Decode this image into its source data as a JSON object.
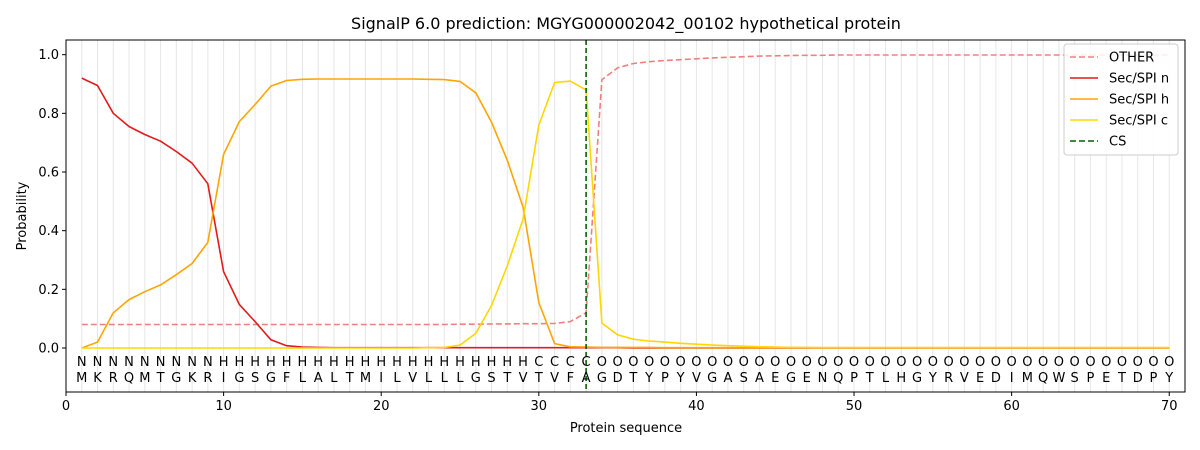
{
  "chart_data": {
    "type": "line",
    "title": "SignalP 6.0 prediction: MGYG000002042_00102 hypothetical protein",
    "xlabel": "Protein sequence",
    "ylabel": "Probability",
    "xlim": [
      0,
      71
    ],
    "ylim": [
      -0.15,
      1.05
    ],
    "x_ticks": [
      0,
      10,
      20,
      30,
      40,
      50,
      60,
      70
    ],
    "y_ticks": [
      0.0,
      0.2,
      0.4,
      0.6,
      0.8,
      1.0
    ],
    "x_tick_labels": [
      "0",
      "10",
      "20",
      "30",
      "40",
      "50",
      "60",
      "70"
    ],
    "y_tick_labels": [
      "0.0",
      "0.2",
      "0.4",
      "0.6",
      "0.8",
      "1.0"
    ],
    "grid": "vertical lines at each residue",
    "legend_position": "top-right",
    "sequence": [
      "M",
      "K",
      "R",
      "Q",
      "M",
      "T",
      "G",
      "K",
      "R",
      "I",
      "G",
      "S",
      "G",
      "F",
      "L",
      "A",
      "L",
      "T",
      "M",
      "I",
      "L",
      "V",
      "L",
      "L",
      "L",
      "G",
      "S",
      "T",
      "V",
      "T",
      "V",
      "F",
      "A",
      "G",
      "D",
      "T",
      "Y",
      "P",
      "Y",
      "V",
      "G",
      "A",
      "S",
      "A",
      "E",
      "G",
      "E",
      "N",
      "Q",
      "P",
      "T",
      "L",
      "H",
      "G",
      "Y",
      "R",
      "V",
      "E",
      "D",
      "I",
      "M",
      "Q",
      "W",
      "S",
      "P",
      "E",
      "T",
      "D",
      "P",
      "Y"
    ],
    "labels": [
      "N",
      "N",
      "N",
      "N",
      "N",
      "N",
      "N",
      "N",
      "N",
      "H",
      "H",
      "H",
      "H",
      "H",
      "H",
      "H",
      "H",
      "H",
      "H",
      "H",
      "H",
      "H",
      "H",
      "H",
      "H",
      "H",
      "H",
      "H",
      "H",
      "C",
      "C",
      "C",
      "C",
      "O",
      "O",
      "O",
      "O",
      "O",
      "O",
      "O",
      "O",
      "O",
      "O",
      "O",
      "O",
      "O",
      "O",
      "O",
      "O",
      "O",
      "O",
      "O",
      "O",
      "O",
      "O",
      "O",
      "O",
      "O",
      "O",
      "O",
      "O",
      "O",
      "O",
      "O",
      "O",
      "O",
      "O",
      "O",
      "O",
      "O"
    ],
    "label_colors": {
      "N": "#ff0000",
      "H": "#ffa500",
      "C": "#ffc800",
      "O": "#808080"
    },
    "cleavage_site": 33,
    "series": [
      {
        "name": "OTHER",
        "color": "#f08080",
        "dash": "dashed",
        "values": [
          0.08,
          0.08,
          0.08,
          0.08,
          0.08,
          0.08,
          0.08,
          0.08,
          0.08,
          0.08,
          0.08,
          0.08,
          0.08,
          0.08,
          0.08,
          0.08,
          0.08,
          0.08,
          0.08,
          0.08,
          0.08,
          0.08,
          0.08,
          0.08,
          0.081,
          0.081,
          0.082,
          0.082,
          0.083,
          0.083,
          0.084,
          0.09,
          0.12,
          0.915,
          0.955,
          0.97,
          0.976,
          0.98,
          0.983,
          0.986,
          0.989,
          0.991,
          0.993,
          0.995,
          0.996,
          0.997,
          0.998,
          0.998,
          0.999,
          0.999,
          0.999,
          0.999,
          0.999,
          0.999,
          0.999,
          0.999,
          0.999,
          0.999,
          0.999,
          0.999,
          0.999,
          0.999,
          0.999,
          0.999,
          0.999,
          0.999,
          0.999,
          0.999,
          0.999,
          0.999
        ]
      },
      {
        "name": "Sec/SPI n",
        "color": "#e41a1c",
        "dash": "solid",
        "values": [
          0.92,
          0.895,
          0.8,
          0.755,
          0.728,
          0.705,
          0.67,
          0.63,
          0.56,
          0.26,
          0.148,
          0.09,
          0.028,
          0.008,
          0.003,
          0.002,
          0.001,
          0.001,
          0.001,
          0.001,
          0.001,
          0.001,
          0.001,
          0.001,
          0.001,
          0.001,
          0.001,
          0.001,
          0.001,
          0.001,
          0.001,
          0.001,
          0.001,
          0.001,
          0.001,
          0.0,
          0.0,
          0.0,
          0.0,
          0.0,
          0.0,
          0.0,
          0.0,
          0.0,
          0.0,
          0.0,
          0.0,
          0.0,
          0.0,
          0.0,
          0.0,
          0.0,
          0.0,
          0.0,
          0.0,
          0.0,
          0.0,
          0.0,
          0.0,
          0.0,
          0.0,
          0.0,
          0.0,
          0.0,
          0.0,
          0.0,
          0.0,
          0.0,
          0.0,
          0.0
        ]
      },
      {
        "name": "Sec/SPI h",
        "color": "#ffa500",
        "dash": "solid",
        "values": [
          0.0,
          0.02,
          0.12,
          0.165,
          0.192,
          0.215,
          0.25,
          0.288,
          0.36,
          0.66,
          0.772,
          0.83,
          0.893,
          0.912,
          0.916,
          0.917,
          0.917,
          0.917,
          0.917,
          0.917,
          0.917,
          0.917,
          0.916,
          0.915,
          0.909,
          0.87,
          0.77,
          0.64,
          0.48,
          0.155,
          0.015,
          0.004,
          0.003,
          0.002,
          0.002,
          0.002,
          0.002,
          0.001,
          0.001,
          0.001,
          0.001,
          0.001,
          0.001,
          0.001,
          0.001,
          0.001,
          0.001,
          0.001,
          0.001,
          0.001,
          0.001,
          0.001,
          0.001,
          0.001,
          0.001,
          0.001,
          0.001,
          0.001,
          0.001,
          0.001,
          0.001,
          0.001,
          0.001,
          0.001,
          0.001,
          0.001,
          0.001,
          0.001,
          0.001,
          0.001
        ]
      },
      {
        "name": "Sec/SPI c",
        "color": "#ffd700",
        "dash": "solid",
        "values": [
          0.0,
          0.0,
          0.0,
          0.0,
          0.0,
          0.0,
          0.0,
          0.0,
          0.0,
          0.0,
          0.0,
          0.0,
          0.0,
          0.0,
          0.0,
          0.0,
          0.0,
          0.0,
          0.0,
          0.0,
          0.0,
          0.0,
          0.001,
          0.002,
          0.01,
          0.05,
          0.145,
          0.28,
          0.44,
          0.76,
          0.905,
          0.91,
          0.88,
          0.085,
          0.045,
          0.03,
          0.024,
          0.02,
          0.016,
          0.013,
          0.01,
          0.008,
          0.006,
          0.004,
          0.003,
          0.002,
          0.002,
          0.001,
          0.001,
          0.001,
          0.001,
          0.001,
          0.001,
          0.001,
          0.001,
          0.001,
          0.001,
          0.001,
          0.001,
          0.001,
          0.001,
          0.001,
          0.001,
          0.001,
          0.001,
          0.001,
          0.001,
          0.001,
          0.001,
          0.001
        ]
      }
    ],
    "legend": [
      {
        "name": "OTHER",
        "color": "#f08080",
        "dash": "dashed"
      },
      {
        "name": "Sec/SPI n",
        "color": "#e41a1c",
        "dash": "solid"
      },
      {
        "name": "Sec/SPI h",
        "color": "#ffa500",
        "dash": "solid"
      },
      {
        "name": "Sec/SPI c",
        "color": "#ffd700",
        "dash": "solid"
      },
      {
        "name": "CS",
        "color": "#006400",
        "dash": "dashed"
      }
    ]
  }
}
